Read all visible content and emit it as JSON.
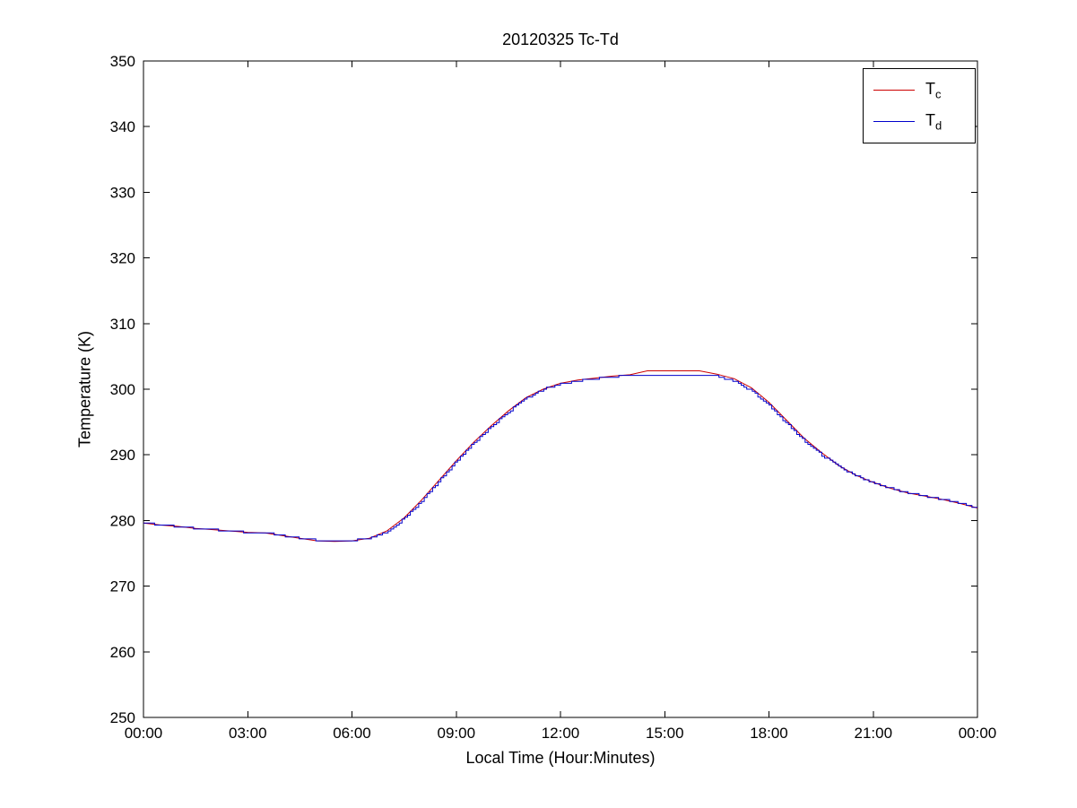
{
  "chart_data": {
    "type": "line",
    "title": "20120325 Tc-Td",
    "xlabel": "Local Time (Hour:Minutes)",
    "ylabel": "Temperature (K)",
    "xlim": [
      0,
      24
    ],
    "ylim": [
      250,
      350
    ],
    "x_ticks": [
      0,
      3,
      6,
      9,
      12,
      15,
      18,
      21,
      24
    ],
    "x_tick_labels": [
      "00:00",
      "03:00",
      "06:00",
      "09:00",
      "12:00",
      "15:00",
      "18:00",
      "21:00",
      "00:00"
    ],
    "y_ticks": [
      250,
      260,
      270,
      280,
      290,
      300,
      310,
      320,
      330,
      340,
      350
    ],
    "y_tick_labels": [
      "250",
      "260",
      "270",
      "280",
      "290",
      "300",
      "310",
      "320",
      "330",
      "340",
      "350"
    ],
    "grid": false,
    "legend_position": "top-right",
    "axis_color": "#000000",
    "x": [
      0,
      0.5,
      1,
      1.5,
      2,
      2.5,
      3,
      3.5,
      4,
      4.5,
      5,
      5.5,
      6,
      6.5,
      7,
      7.5,
      8,
      8.5,
      9,
      9.5,
      10,
      10.5,
      11,
      11.5,
      12,
      12.5,
      13,
      13.5,
      14,
      14.5,
      15,
      15.5,
      16,
      16.5,
      17,
      17.5,
      18,
      18.5,
      19,
      19.5,
      20,
      20.5,
      21,
      21.5,
      22,
      22.5,
      23,
      23.5,
      24
    ],
    "series": [
      {
        "name": "Tc",
        "label_main": "T",
        "label_sub": "c",
        "color": "#cc0000",
        "style": "line",
        "values": [
          279.6,
          279.3,
          279.1,
          278.8,
          278.6,
          278.4,
          278.2,
          278.1,
          277.7,
          277.3,
          276.9,
          276.8,
          276.9,
          277.3,
          278.4,
          280.4,
          283.1,
          286.1,
          289.1,
          291.9,
          294.4,
          296.7,
          298.7,
          300.0,
          300.9,
          301.4,
          301.7,
          302.0,
          302.2,
          302.8,
          302.8,
          302.8,
          302.8,
          302.3,
          301.6,
          300.2,
          298.0,
          295.3,
          292.6,
          290.4,
          288.4,
          286.9,
          285.8,
          284.9,
          284.2,
          283.7,
          283.2,
          282.6,
          281.9
        ]
      },
      {
        "name": "Td",
        "label_main": "T",
        "label_sub": "d",
        "color": "#0000cc",
        "style": "step",
        "values": [
          279.6,
          279.3,
          279.1,
          278.8,
          278.6,
          278.4,
          278.2,
          278.2,
          277.7,
          277.3,
          277.0,
          276.9,
          277.0,
          277.3,
          278.3,
          280.3,
          283.0,
          286.0,
          289.0,
          291.8,
          294.3,
          296.6,
          298.6,
          300.0,
          300.8,
          301.3,
          301.6,
          301.9,
          302.1,
          302.2,
          302.2,
          302.2,
          302.2,
          302.0,
          301.2,
          299.7,
          297.5,
          294.8,
          292.2,
          290.0,
          288.2,
          286.8,
          285.7,
          284.9,
          284.2,
          283.7,
          283.2,
          282.6,
          281.9
        ]
      }
    ]
  }
}
